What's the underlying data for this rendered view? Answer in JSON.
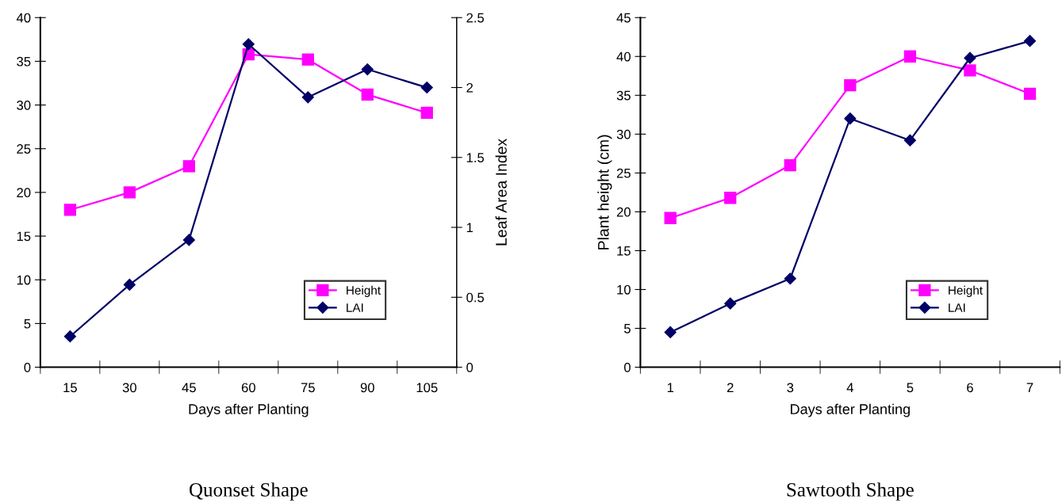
{
  "chart_data": [
    {
      "type": "line",
      "xlabel": "Days after Planting",
      "y2label": "Leaf Area Index",
      "annotations": [
        "Quonset Shape"
      ],
      "categories": [
        "15",
        "30",
        "45",
        "60",
        "75",
        "90",
        "105"
      ],
      "ylim": [
        0,
        40
      ],
      "yticks": [
        0,
        5,
        10,
        15,
        20,
        25,
        30,
        35,
        40
      ],
      "y2lim": [
        0,
        2.5
      ],
      "y2ticks": [
        0,
        0.5,
        1,
        1.5,
        2,
        2.5
      ],
      "grid": false,
      "legend": "bottom right",
      "series": [
        {
          "name": "Height",
          "color": "#ff00ff",
          "marker": "square",
          "values": [
            18,
            20,
            23,
            35.8,
            35.2,
            31.2,
            29.1
          ]
        },
        {
          "name": "LAI",
          "color": "#000066",
          "marker": "diamond",
          "axis": "y2",
          "values": [
            0.22,
            0.59,
            0.91,
            2.31,
            1.93,
            2.13,
            2.0
          ]
        }
      ]
    },
    {
      "type": "line",
      "xlabel": "Days after Planting",
      "ylabel": "Plant height (cm)",
      "annotations": [
        "Sawtooth Shape"
      ],
      "categories": [
        "1",
        "2",
        "3",
        "4",
        "5",
        "6",
        "7"
      ],
      "ylim": [
        0,
        45
      ],
      "yticks": [
        0,
        5,
        10,
        15,
        20,
        25,
        30,
        35,
        40,
        45
      ],
      "grid": false,
      "legend": "bottom right",
      "series": [
        {
          "name": "Height",
          "color": "#ff00ff",
          "marker": "square",
          "values": [
            19.2,
            21.8,
            26,
            36.3,
            40,
            38.2,
            35.2
          ]
        },
        {
          "name": "LAI",
          "color": "#000066",
          "marker": "diamond",
          "values": [
            4.5,
            8.2,
            11.4,
            32,
            29.2,
            39.8,
            42
          ]
        }
      ]
    }
  ]
}
